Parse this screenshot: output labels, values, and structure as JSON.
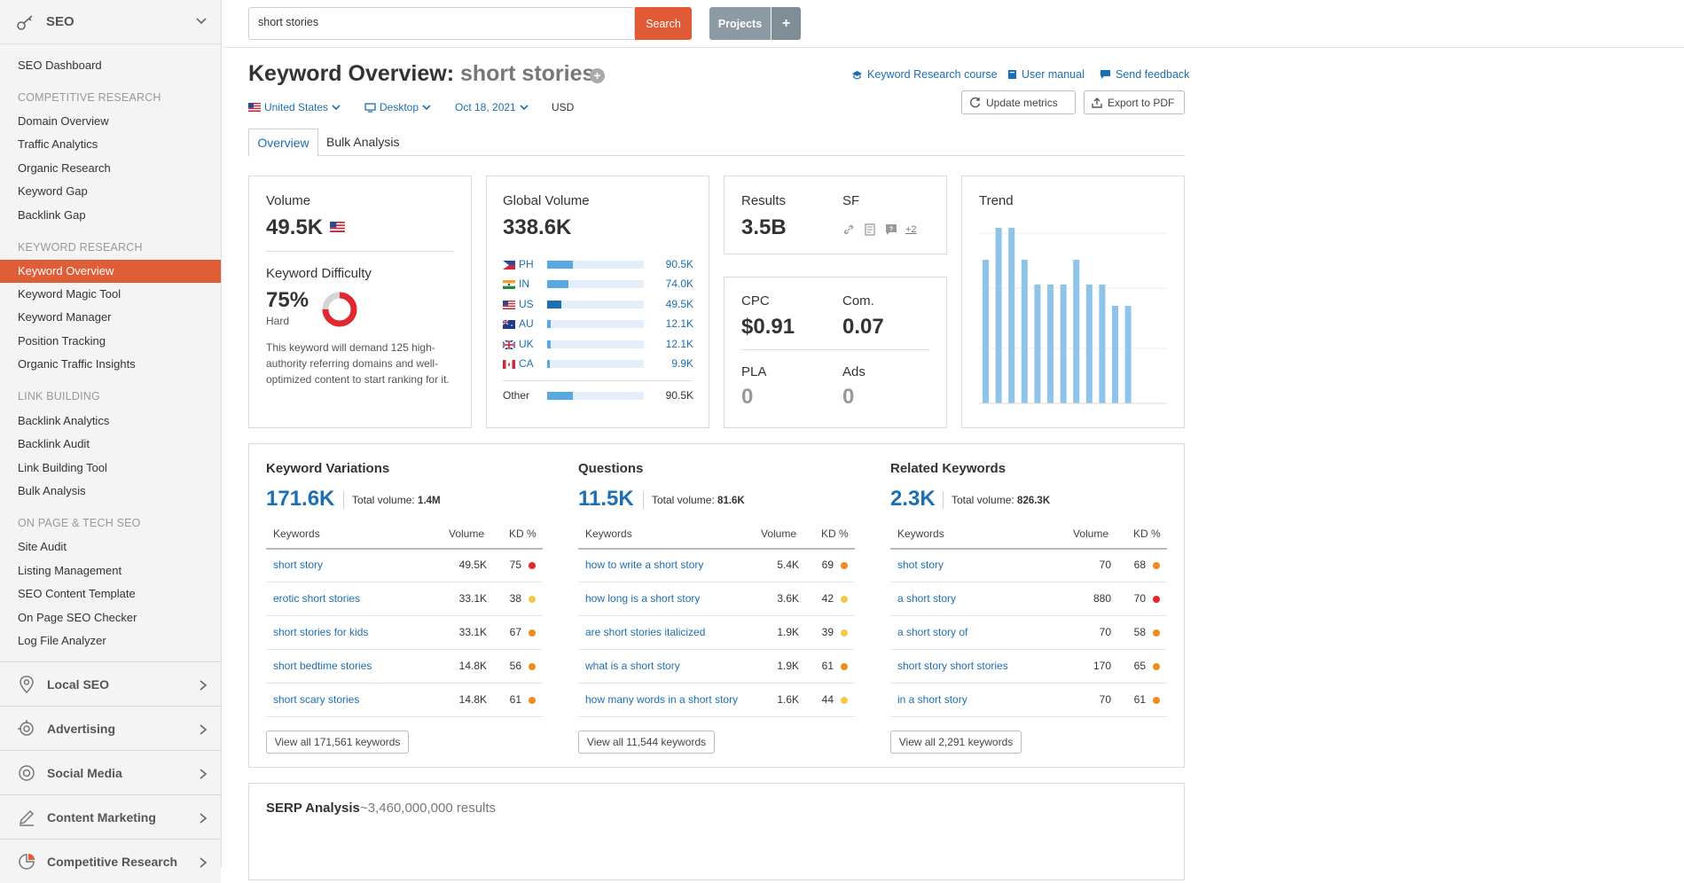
{
  "sidebar": {
    "header": "SEO",
    "items": [
      {
        "label": "SEO Dashboard"
      },
      {
        "label": "COMPETITIVE RESEARCH"
      },
      {
        "label": "Domain Overview"
      },
      {
        "label": "Traffic Analytics"
      },
      {
        "label": "Organic Research"
      },
      {
        "label": "Keyword Gap"
      },
      {
        "label": "Backlink Gap"
      },
      {
        "label": "KEYWORD RESEARCH"
      },
      {
        "label": "Keyword Overview"
      },
      {
        "label": "Keyword Magic Tool"
      },
      {
        "label": "Keyword Manager"
      },
      {
        "label": "Position Tracking"
      },
      {
        "label": "Organic Traffic Insights"
      },
      {
        "label": "LINK BUILDING"
      },
      {
        "label": "Backlink Analytics"
      },
      {
        "label": "Backlink Audit"
      },
      {
        "label": "Link Building Tool"
      },
      {
        "label": "Bulk Analysis"
      },
      {
        "label": "ON PAGE & TECH SEO"
      },
      {
        "label": "Site Audit"
      },
      {
        "label": "Listing Management"
      },
      {
        "label": "SEO Content Template"
      },
      {
        "label": "On Page SEO Checker"
      },
      {
        "label": "Log File Analyzer"
      }
    ],
    "groups": [
      {
        "label": "Local SEO"
      },
      {
        "label": "Advertising"
      },
      {
        "label": "Social Media"
      },
      {
        "label": "Content Marketing"
      },
      {
        "label": "Competitive Research"
      }
    ]
  },
  "topbar": {
    "search_value": "short stories",
    "search_button": "Search",
    "projects_button": "Projects",
    "plus": "+"
  },
  "header": {
    "title_prefix": "Keyword Overview:",
    "title_keyword": "short stories",
    "links": [
      "Keyword Research course",
      "User manual",
      "Send feedback"
    ],
    "update_button": "Update metrics",
    "export_button": "Export to PDF",
    "filters": {
      "country": "United States",
      "device": "Desktop",
      "date": "Oct 18, 2021",
      "currency": "USD"
    },
    "tabs": [
      "Overview",
      "Bulk Analysis"
    ]
  },
  "volume_card": {
    "label": "Volume",
    "value": "49.5K",
    "kd_label": "Keyword Difficulty",
    "kd_value": "75%",
    "kd_level": "Hard",
    "kd_percent": 75,
    "note": "This keyword will demand 125 high-authority referring domains and well-optimized content to start ranking for it."
  },
  "global_card": {
    "label": "Global Volume",
    "value": "338.6K",
    "countries": [
      {
        "code": "PH",
        "value": "90.5K",
        "share": 0.27
      },
      {
        "code": "IN",
        "value": "74.0K",
        "share": 0.22
      },
      {
        "code": "US",
        "value": "49.5K",
        "share": 0.15
      },
      {
        "code": "AU",
        "value": "12.1K",
        "share": 0.04
      },
      {
        "code": "UK",
        "value": "12.1K",
        "share": 0.04
      },
      {
        "code": "CA",
        "value": "9.9K",
        "share": 0.03
      }
    ],
    "other_label": "Other",
    "other_value": "90.5K",
    "other_share": 0.27
  },
  "results_card": {
    "results_label": "Results",
    "results_value": "3.5B",
    "sf_label": "SF",
    "sf_more": "+2"
  },
  "cpc_card": {
    "cpc_label": "CPC",
    "cpc_value": "$0.91",
    "com_label": "Com.",
    "com_value": "0.07",
    "pla_label": "PLA",
    "pla_value": "0",
    "ads_label": "Ads",
    "ads_value": "0"
  },
  "trend_card": {
    "label": "Trend",
    "values": [
      0.81,
      0.99,
      0.99,
      0.81,
      0.67,
      0.67,
      0.67,
      0.81,
      0.67,
      0.67,
      0.55,
      0.55
    ]
  },
  "sections": [
    {
      "title": "Keyword Variations",
      "big": "171.6K",
      "tv_label": "Total volume:",
      "tv_value": "1.4M",
      "headers": [
        "Keywords",
        "Volume",
        "KD %"
      ],
      "rows": [
        {
          "kw": "short story",
          "vol": "49.5K",
          "kd": "75",
          "color": "#e0282e"
        },
        {
          "kw": "erotic short stories",
          "vol": "33.1K",
          "kd": "38",
          "color": "#f2c94c"
        },
        {
          "kw": "short stories for kids",
          "vol": "33.1K",
          "kd": "67",
          "color": "#f08a24"
        },
        {
          "kw": "short bedtime stories",
          "vol": "14.8K",
          "kd": "56",
          "color": "#f08a24"
        },
        {
          "kw": "short scary stories",
          "vol": "14.8K",
          "kd": "61",
          "color": "#f08a24"
        }
      ],
      "view_all": "View all 171,561 keywords"
    },
    {
      "title": "Questions",
      "big": "11.5K",
      "tv_label": "Total volume:",
      "tv_value": "81.6K",
      "headers": [
        "Keywords",
        "Volume",
        "KD %"
      ],
      "rows": [
        {
          "kw": "how to write a short story",
          "vol": "5.4K",
          "kd": "69",
          "color": "#f08a24"
        },
        {
          "kw": "how long is a short story",
          "vol": "3.6K",
          "kd": "42",
          "color": "#f2c94c"
        },
        {
          "kw": "are short stories italicized",
          "vol": "1.9K",
          "kd": "39",
          "color": "#f2c94c"
        },
        {
          "kw": "what is a short story",
          "vol": "1.9K",
          "kd": "61",
          "color": "#f08a24"
        },
        {
          "kw": "how many words in a short story",
          "vol": "1.6K",
          "kd": "44",
          "color": "#f2c94c"
        }
      ],
      "view_all": "View all 11,544 keywords"
    },
    {
      "title": "Related Keywords",
      "big": "2.3K",
      "tv_label": "Total volume:",
      "tv_value": "826.3K",
      "headers": [
        "Keywords",
        "Volume",
        "KD %"
      ],
      "rows": [
        {
          "kw": "shot story",
          "vol": "70",
          "kd": "68",
          "color": "#f08a24"
        },
        {
          "kw": "a short story",
          "vol": "880",
          "kd": "70",
          "color": "#e0282e"
        },
        {
          "kw": "a short story of",
          "vol": "70",
          "kd": "58",
          "color": "#f08a24"
        },
        {
          "kw": "short story short stories",
          "vol": "170",
          "kd": "65",
          "color": "#f08a24"
        },
        {
          "kw": "in a short story",
          "vol": "70",
          "kd": "61",
          "color": "#f08a24"
        }
      ],
      "view_all": "View all 2,291 keywords"
    }
  ],
  "serp": {
    "title": "SERP Analysis",
    "results": "~3,460,000,000 results"
  },
  "colors": {
    "accent": "#e05e37",
    "link": "#1a6fb5",
    "bar": "#8ec3ea",
    "kd_red": "#e0282e"
  }
}
